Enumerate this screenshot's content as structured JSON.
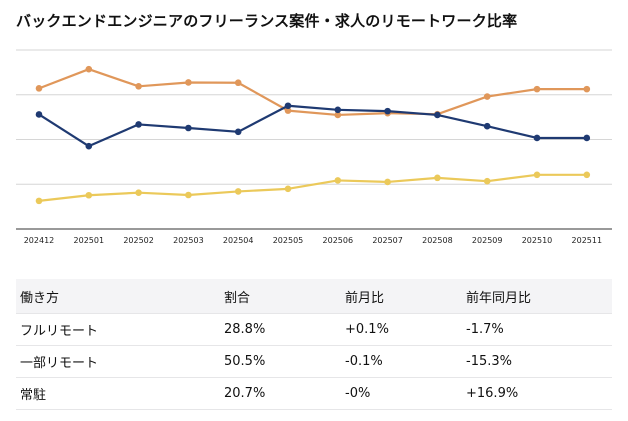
{
  "title": "バックエンドエンジニアのフリーランス案件・求人のリモートワーク比率",
  "chart_data": {
    "type": "line",
    "categories": [
      "202412",
      "202501",
      "202502",
      "202503",
      "202504",
      "202505",
      "202506",
      "202507",
      "202508",
      "202509",
      "202510",
      "202511"
    ],
    "ylim": [
      0,
      70
    ],
    "grid": true,
    "legend": "none",
    "series": [
      {
        "color": "#e0975a",
        "values": [
          55.0,
          62.5,
          55.8,
          57.3,
          57.2,
          46.3,
          44.6,
          45.3,
          44.9,
          51.8,
          54.7,
          54.7
        ]
      },
      {
        "color": "#1f3a72",
        "values": [
          44.8,
          32.4,
          40.9,
          39.5,
          38.0,
          48.2,
          46.6,
          46.1,
          44.6,
          40.2,
          35.6,
          35.6
        ]
      },
      {
        "color": "#ebc95a",
        "values": [
          11.0,
          13.2,
          14.2,
          13.3,
          14.7,
          15.7,
          19.0,
          18.4,
          20.0,
          18.7,
          21.2,
          21.2
        ]
      }
    ]
  },
  "table": {
    "headers": [
      "働き方",
      "割合",
      "前月比",
      "前年同月比"
    ],
    "rows": [
      [
        "フルリモート",
        "28.8%",
        "+0.1%",
        "-1.7%"
      ],
      [
        "一部リモート",
        "50.5%",
        "-0.1%",
        "-15.3%"
      ],
      [
        "常駐",
        "20.7%",
        "-0%",
        "+16.9%"
      ]
    ]
  }
}
